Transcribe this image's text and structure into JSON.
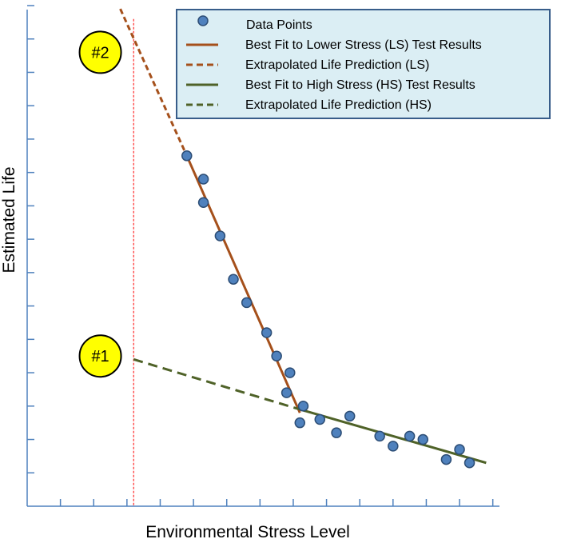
{
  "chart_data": {
    "type": "scatter",
    "title": "",
    "xlabel": "Environmental Stress Level",
    "ylabel": "Estimated Life",
    "xlim": [
      0,
      14.2
    ],
    "ylim": [
      0,
      15
    ],
    "x_ticks": 14,
    "y_ticks": 15,
    "tick_labels_shown": false,
    "grid": false,
    "legend_position": "top-right",
    "colors": {
      "points": "#4f81bd",
      "points_edge": "#2c4d75",
      "ls": "#a5501b",
      "hs": "#4f6228",
      "limit_line": "#ff0000",
      "legend_bg": "#dbeef4",
      "legend_border": "#385d8a",
      "axis": "#4f81bd",
      "callout_fill": "#ffff00"
    },
    "data_points": {
      "name": "Data Points",
      "x": [
        4.8,
        5.3,
        5.3,
        5.8,
        6.2,
        6.6,
        7.2,
        7.5,
        7.9,
        7.8,
        8.3,
        8.2,
        8.8,
        9.3,
        9.7,
        10.6,
        11.0,
        11.5,
        11.9,
        12.6,
        13.0,
        13.3
      ],
      "y": [
        10.5,
        9.8,
        9.1,
        8.1,
        6.8,
        6.1,
        5.2,
        4.5,
        4.0,
        3.4,
        3.0,
        2.5,
        2.6,
        2.2,
        2.7,
        2.1,
        1.8,
        2.1,
        2.0,
        1.4,
        1.7,
        1.3
      ]
    },
    "series": [
      {
        "name": "Best Fit to Lower Stress (LS) Test Results",
        "style": "solid",
        "color_key": "ls",
        "x": [
          4.8,
          8.2
        ],
        "y": [
          10.5,
          2.8
        ]
      },
      {
        "name": "Extrapolated Life Prediction (LS)",
        "style": "dashed",
        "color_key": "ls",
        "x": [
          2.8,
          4.8
        ],
        "y": [
          14.9,
          10.5
        ]
      },
      {
        "name": "Best Fit to High Stress (HS) Test Results",
        "style": "solid",
        "color_key": "hs",
        "x": [
          8.2,
          13.8
        ],
        "y": [
          2.9,
          1.3
        ]
      },
      {
        "name": "Extrapolated Life Prediction (HS)",
        "style": "dashed",
        "color_key": "hs",
        "x": [
          3.2,
          8.2
        ],
        "y": [
          4.4,
          2.9
        ]
      }
    ],
    "reference_line": {
      "x": 3.2
    },
    "annotations": [
      {
        "label": "#2",
        "points_to": "Extrapolated Life Prediction (LS)",
        "x": 2.2,
        "y": 13.6
      },
      {
        "label": "#1",
        "points_to": "Extrapolated Life Prediction (HS)",
        "x": 2.2,
        "y": 4.5
      }
    ]
  }
}
